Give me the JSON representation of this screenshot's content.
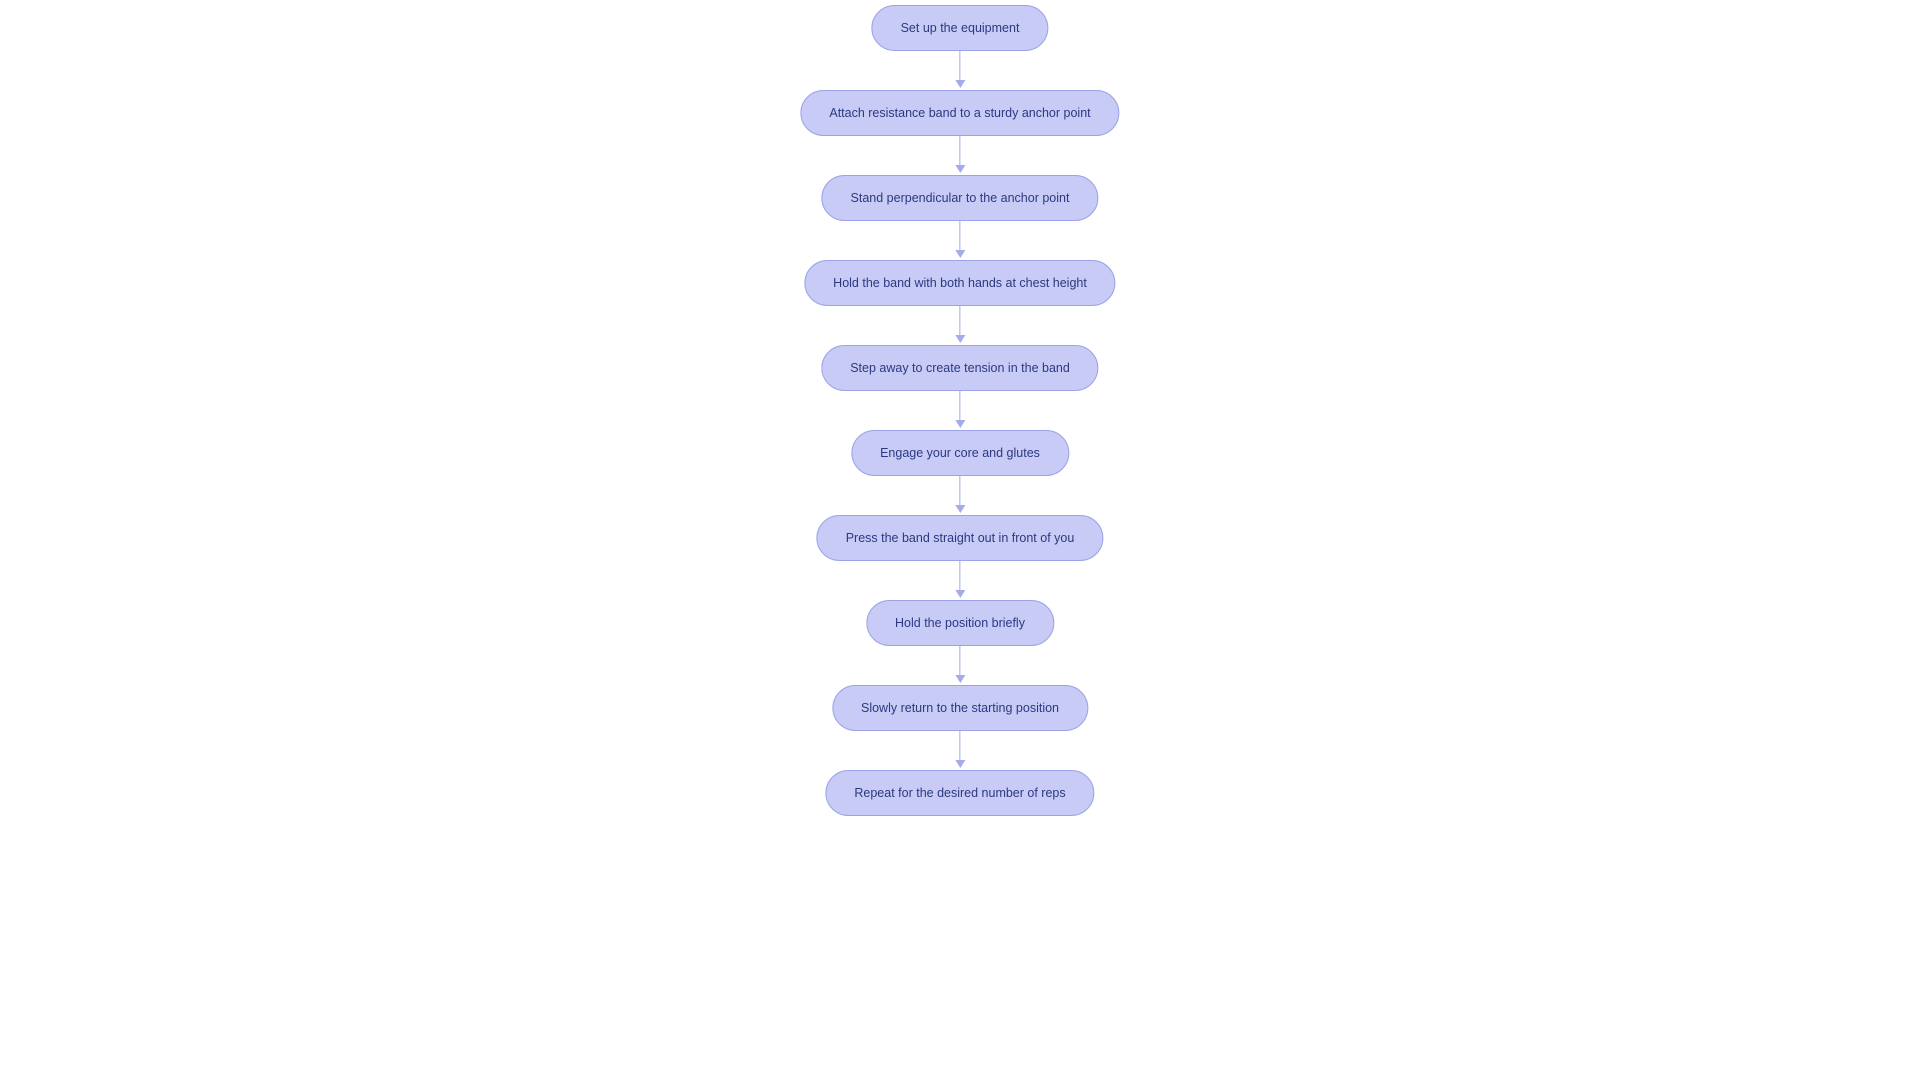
{
  "flowchart": {
    "type": "flowchart",
    "background_color": "#ffffff",
    "node_fill": "#c7cbf5",
    "node_border": "#9ca3e8",
    "node_text_color": "#2c3980",
    "node_fontsize": 12.5,
    "node_border_radius": 999,
    "connector_color": "#a4abe8",
    "connector_length": 39,
    "nodes": [
      {
        "id": "n1",
        "label": "Set up the equipment"
      },
      {
        "id": "n2",
        "label": "Attach resistance band to a sturdy anchor point"
      },
      {
        "id": "n3",
        "label": "Stand perpendicular to the anchor point"
      },
      {
        "id": "n4",
        "label": "Hold the band with both hands at chest height"
      },
      {
        "id": "n5",
        "label": "Step away to create tension in the band"
      },
      {
        "id": "n6",
        "label": "Engage your core and glutes"
      },
      {
        "id": "n7",
        "label": "Press the band straight out in front of you"
      },
      {
        "id": "n8",
        "label": "Hold the position briefly"
      },
      {
        "id": "n9",
        "label": "Slowly return to the starting position"
      },
      {
        "id": "n10",
        "label": "Repeat for the desired number of reps"
      }
    ],
    "edges": [
      {
        "from": "n1",
        "to": "n2"
      },
      {
        "from": "n2",
        "to": "n3"
      },
      {
        "from": "n3",
        "to": "n4"
      },
      {
        "from": "n4",
        "to": "n5"
      },
      {
        "from": "n5",
        "to": "n6"
      },
      {
        "from": "n6",
        "to": "n7"
      },
      {
        "from": "n7",
        "to": "n8"
      },
      {
        "from": "n8",
        "to": "n9"
      },
      {
        "from": "n9",
        "to": "n10"
      }
    ]
  }
}
